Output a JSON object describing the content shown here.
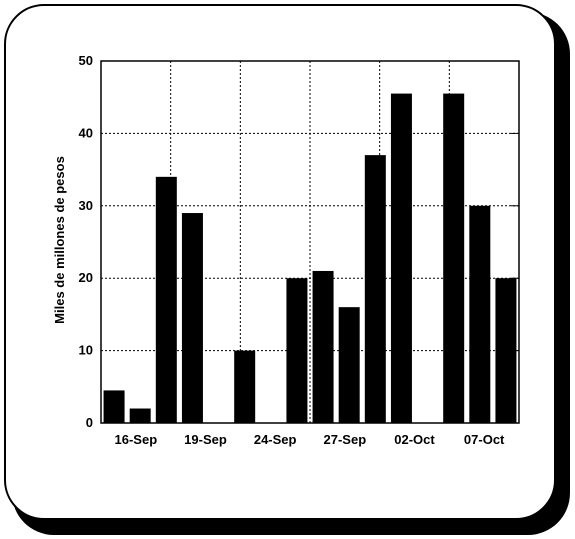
{
  "chart_data": {
    "type": "bar",
    "title": "",
    "xlabel": "",
    "ylabel": "Miles de millones de pesos",
    "ylim": [
      0,
      50
    ],
    "yticks": [
      0,
      10,
      20,
      30,
      40,
      50
    ],
    "x_tick_labels": [
      "16-Sep",
      "19-Sep",
      "24-Sep",
      "27-Sep",
      "02-Oct",
      "07-Oct"
    ],
    "grid": true,
    "bar_color": "#000000",
    "slot_count": 16,
    "bars": [
      {
        "slot": 0,
        "value": 4.5
      },
      {
        "slot": 1,
        "value": 2
      },
      {
        "slot": 2,
        "value": 34
      },
      {
        "slot": 3,
        "value": 29
      },
      {
        "slot": 5,
        "value": 10
      },
      {
        "slot": 7,
        "value": 20
      },
      {
        "slot": 8,
        "value": 21
      },
      {
        "slot": 9,
        "value": 16
      },
      {
        "slot": 10,
        "value": 37
      },
      {
        "slot": 11,
        "value": 45.5
      },
      {
        "slot": 13,
        "value": 45.5
      },
      {
        "slot": 14,
        "value": 30
      },
      {
        "slot": 15,
        "value": 20
      }
    ]
  }
}
